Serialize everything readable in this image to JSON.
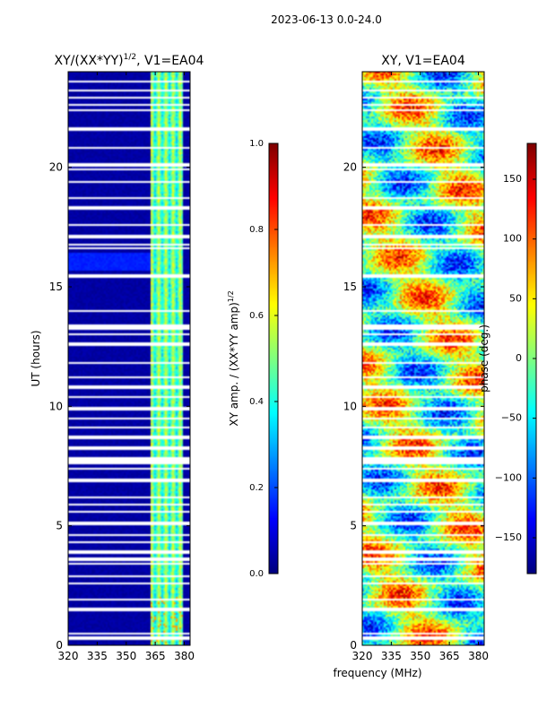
{
  "suptitle": "2023-06-13 0.0-24.0",
  "shared_xlabel": "frequency (MHz)",
  "chart_data": [
    {
      "type": "heatmap",
      "title_main": "XY/(XX*YY)",
      "title_sup": "1/2",
      "title_suffix": ", V1=EA04",
      "ylabel": "UT (hours)",
      "xlim": [
        320,
        383
      ],
      "ylim": [
        0,
        24
      ],
      "xticks": [
        320,
        335,
        350,
        365,
        380
      ],
      "yticks": [
        0,
        5,
        10,
        15,
        20
      ],
      "colorbar": {
        "label_main": "XY amp. / (XX*YY amp)",
        "label_sup": "1/2",
        "vmin": 0.0,
        "vmax": 1.0,
        "ticks": [
          0.0,
          0.2,
          0.4,
          0.6,
          0.8,
          1.0
        ],
        "tick_labels": [
          "0.0",
          "0.2",
          "0.4",
          "0.6",
          "0.8",
          "1.0"
        ]
      },
      "description_values": {
        "background_amp": 0.02,
        "high_band_mhz": [
          363,
          379
        ],
        "high_band_amp_range": [
          0.3,
          0.65
        ]
      }
    },
    {
      "type": "heatmap",
      "title_main": "XY",
      "title_sup": "",
      "title_suffix": ", V1=EA04",
      "ylabel": "",
      "xlim": [
        320,
        383
      ],
      "ylim": [
        0,
        24
      ],
      "xticks": [
        320,
        335,
        350,
        365,
        380
      ],
      "yticks": [
        0,
        5,
        10,
        15,
        20
      ],
      "colorbar": {
        "label_main": "phase (deg.)",
        "label_sup": "",
        "vmin": -180,
        "vmax": 180,
        "ticks": [
          -150,
          -100,
          -50,
          0,
          50,
          100,
          150
        ],
        "tick_labels": [
          "−150",
          "−100",
          "−50",
          "0",
          "50",
          "100",
          "150"
        ]
      },
      "description_values": {
        "phase_range_deg": [
          -180,
          180
        ]
      }
    }
  ],
  "flagged_hours": [
    0.3,
    0.5,
    1.5,
    1.9,
    2.6,
    2.9,
    3.4,
    3.6,
    3.9,
    4.3,
    4.6,
    5.1,
    5.6,
    5.9,
    6.2,
    6.9,
    7.4,
    7.65,
    7.75,
    7.85,
    8.2,
    8.3,
    8.7,
    9.1,
    9.5,
    9.9,
    10.4,
    10.8,
    11.2,
    11.8,
    12.6,
    13.0,
    13.25,
    13.35,
    14.0,
    15.4,
    15.5,
    16.6,
    16.75,
    17.1,
    17.6,
    18.3,
    18.7,
    19.4,
    19.9,
    20.1,
    20.8,
    21.6,
    22.4,
    22.6,
    22.9,
    23.2,
    23.6
  ]
}
